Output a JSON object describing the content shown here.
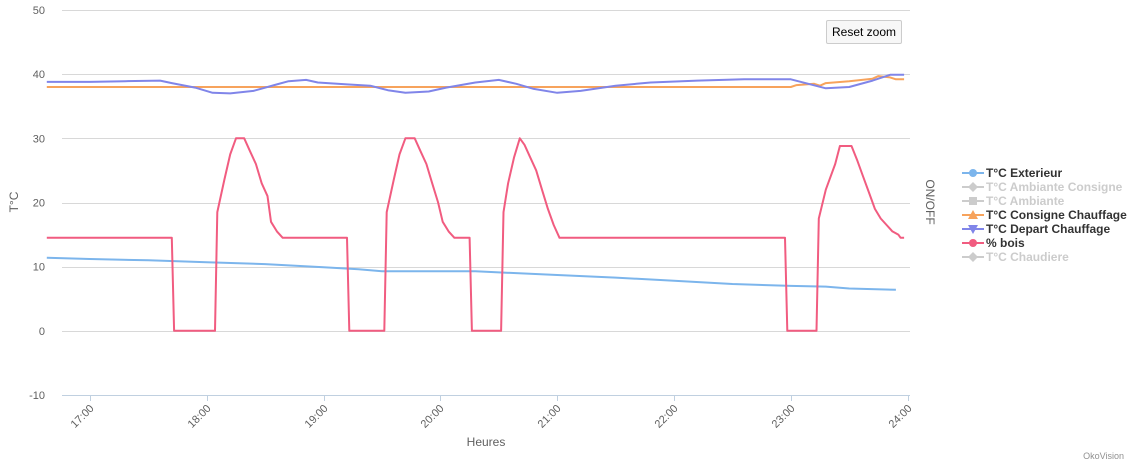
{
  "toolbar": {
    "reset_zoom_label": "Reset zoom"
  },
  "credits": "OkoVision",
  "chart_data": {
    "type": "line",
    "xlabel": "Heures",
    "ylabel": "T°C",
    "y2label": "ON/OFF",
    "ylim": [
      -10,
      50
    ],
    "yticks": [
      -10,
      0,
      10,
      20,
      30,
      40,
      50
    ],
    "xlim": [
      16.63,
      24.0
    ],
    "xticks": [
      "17:00",
      "18:00",
      "19:00",
      "20:00",
      "21:00",
      "22:00",
      "23:00",
      "24:00"
    ],
    "grid": true,
    "legend_position": "right",
    "series": [
      {
        "name": "T°C Exterieur",
        "color": "#7cb5ec",
        "marker": "circle",
        "visible": true,
        "points": [
          [
            16.63,
            11.4
          ],
          [
            17.0,
            11.2
          ],
          [
            17.5,
            11.0
          ],
          [
            18.0,
            10.7
          ],
          [
            18.5,
            10.4
          ],
          [
            19.0,
            9.9
          ],
          [
            19.3,
            9.6
          ],
          [
            19.5,
            9.3
          ],
          [
            20.0,
            9.3
          ],
          [
            20.3,
            9.3
          ],
          [
            20.5,
            9.1
          ],
          [
            21.0,
            8.7
          ],
          [
            21.5,
            8.3
          ],
          [
            22.0,
            7.8
          ],
          [
            22.5,
            7.3
          ],
          [
            23.0,
            7.0
          ],
          [
            23.3,
            6.9
          ],
          [
            23.5,
            6.6
          ],
          [
            23.9,
            6.4
          ]
        ]
      },
      {
        "name": "T°C Ambiante Consigne",
        "color": "#cccccc",
        "marker": "diamond",
        "visible": false,
        "points": []
      },
      {
        "name": "T°C Ambiante",
        "color": "#cccccc",
        "marker": "square",
        "visible": false,
        "points": []
      },
      {
        "name": "T°C Consigne Chauffage",
        "color": "#f7a35c",
        "marker": "triangle",
        "visible": true,
        "points": [
          [
            16.63,
            38.0
          ],
          [
            23.0,
            38.0
          ],
          [
            23.05,
            38.3
          ],
          [
            23.2,
            38.5
          ],
          [
            23.25,
            38.2
          ],
          [
            23.3,
            38.6
          ],
          [
            23.5,
            38.9
          ],
          [
            23.7,
            39.3
          ],
          [
            23.75,
            39.7
          ],
          [
            23.85,
            39.5
          ],
          [
            23.9,
            39.2
          ],
          [
            23.97,
            39.2
          ]
        ]
      },
      {
        "name": "T°C Depart Chauffage",
        "color": "#8085e9",
        "marker": "triangle-down",
        "visible": true,
        "points": [
          [
            16.63,
            38.8
          ],
          [
            17.0,
            38.8
          ],
          [
            17.3,
            38.9
          ],
          [
            17.6,
            39.0
          ],
          [
            17.7,
            38.6
          ],
          [
            17.9,
            37.9
          ],
          [
            18.05,
            37.1
          ],
          [
            18.2,
            37.0
          ],
          [
            18.4,
            37.4
          ],
          [
            18.6,
            38.4
          ],
          [
            18.7,
            38.9
          ],
          [
            18.85,
            39.1
          ],
          [
            18.95,
            38.7
          ],
          [
            19.2,
            38.4
          ],
          [
            19.4,
            38.2
          ],
          [
            19.55,
            37.5
          ],
          [
            19.7,
            37.1
          ],
          [
            19.9,
            37.3
          ],
          [
            20.05,
            37.9
          ],
          [
            20.3,
            38.7
          ],
          [
            20.5,
            39.1
          ],
          [
            20.65,
            38.5
          ],
          [
            20.8,
            37.7
          ],
          [
            21.0,
            37.1
          ],
          [
            21.2,
            37.4
          ],
          [
            21.5,
            38.2
          ],
          [
            21.8,
            38.7
          ],
          [
            22.2,
            39.0
          ],
          [
            22.6,
            39.2
          ],
          [
            23.0,
            39.2
          ],
          [
            23.15,
            38.5
          ],
          [
            23.3,
            37.8
          ],
          [
            23.5,
            38.0
          ],
          [
            23.7,
            39.0
          ],
          [
            23.85,
            39.9
          ],
          [
            23.97,
            39.9
          ]
        ]
      },
      {
        "name": "% bois",
        "color": "#f15c80",
        "marker": "circle",
        "visible": true,
        "points": [
          [
            16.63,
            14.5
          ],
          [
            17.7,
            14.5
          ],
          [
            17.72,
            0
          ],
          [
            18.07,
            0
          ],
          [
            18.09,
            18.5
          ],
          [
            18.15,
            23.5
          ],
          [
            18.2,
            27.5
          ],
          [
            18.25,
            30
          ],
          [
            18.32,
            30
          ],
          [
            18.37,
            28
          ],
          [
            18.42,
            26
          ],
          [
            18.47,
            23
          ],
          [
            18.52,
            21
          ],
          [
            18.55,
            17
          ],
          [
            18.6,
            15.5
          ],
          [
            18.65,
            14.5
          ],
          [
            19.2,
            14.5
          ],
          [
            19.22,
            0
          ],
          [
            19.52,
            0
          ],
          [
            19.54,
            18.5
          ],
          [
            19.6,
            23.5
          ],
          [
            19.65,
            27.5
          ],
          [
            19.7,
            30
          ],
          [
            19.78,
            30
          ],
          [
            19.83,
            28
          ],
          [
            19.88,
            26
          ],
          [
            19.93,
            23
          ],
          [
            19.98,
            20
          ],
          [
            20.02,
            17
          ],
          [
            20.07,
            15.5
          ],
          [
            20.12,
            14.5
          ],
          [
            20.25,
            14.5
          ],
          [
            20.27,
            0
          ],
          [
            20.52,
            0
          ],
          [
            20.54,
            18.5
          ],
          [
            20.58,
            23
          ],
          [
            20.63,
            27
          ],
          [
            20.68,
            30
          ],
          [
            20.72,
            29
          ],
          [
            20.77,
            27
          ],
          [
            20.82,
            25
          ],
          [
            20.87,
            22
          ],
          [
            20.92,
            19
          ],
          [
            20.97,
            16.5
          ],
          [
            21.02,
            14.5
          ],
          [
            22.95,
            14.5
          ],
          [
            22.97,
            0
          ],
          [
            23.22,
            0
          ],
          [
            23.24,
            17.5
          ],
          [
            23.3,
            22
          ],
          [
            23.38,
            26
          ],
          [
            23.42,
            28.8
          ],
          [
            23.52,
            28.8
          ],
          [
            23.57,
            26.5
          ],
          [
            23.62,
            24
          ],
          [
            23.67,
            21.5
          ],
          [
            23.72,
            19
          ],
          [
            23.77,
            17.5
          ],
          [
            23.82,
            16.5
          ],
          [
            23.87,
            15.5
          ],
          [
            23.92,
            15.0
          ],
          [
            23.94,
            14.5
          ],
          [
            23.97,
            14.5
          ]
        ]
      },
      {
        "name": "T°C Chaudiere",
        "color": "#cccccc",
        "marker": "diamond",
        "visible": false,
        "points": []
      }
    ]
  }
}
